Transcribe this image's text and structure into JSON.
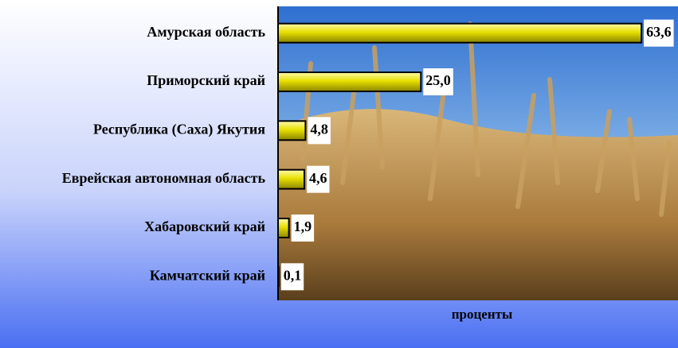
{
  "chart_data": {
    "type": "barh",
    "x_label": "проценты",
    "categories": [
      "Амурская область",
      "Приморский край",
      "Республика (Саха) Якутия",
      "Еврейская автономная область",
      "Хабаровский край",
      "Камчатский край"
    ],
    "values": [
      63.6,
      25.0,
      4.8,
      4.6,
      1.9,
      0.1
    ],
    "value_labels": [
      "63,6",
      "25,0",
      "4,8",
      "4,6",
      "1,9",
      "0,1"
    ],
    "color": "#e8e000",
    "xlim": [
      0,
      70
    ]
  }
}
